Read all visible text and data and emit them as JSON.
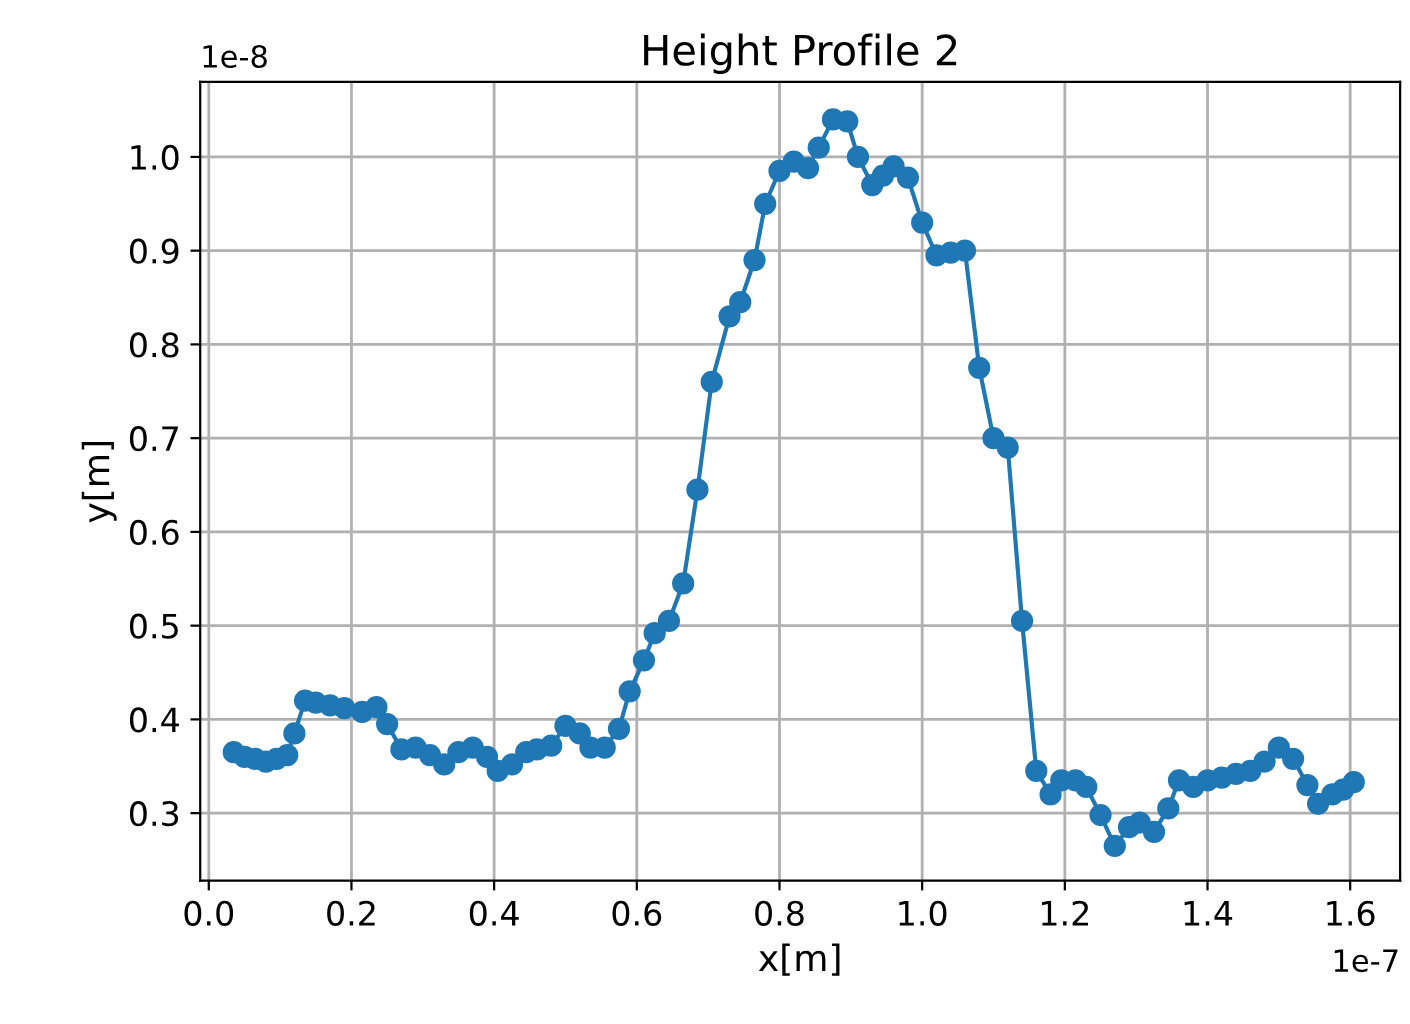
{
  "chart_data": {
    "type": "line",
    "title": "Height Profile 2",
    "xlabel": "x[m]",
    "ylabel": "y[m]",
    "annotations": [
      "1e-8",
      "1e-7"
    ],
    "series": [
      {
        "color": "#1f77b4",
        "x": [
          0.035,
          0.05,
          0.065,
          0.08,
          0.095,
          0.11,
          0.12,
          0.135,
          0.15,
          0.17,
          0.19,
          0.215,
          0.235,
          0.25,
          0.27,
          0.29,
          0.31,
          0.33,
          0.35,
          0.37,
          0.39,
          0.405,
          0.425,
          0.445,
          0.46,
          0.48,
          0.5,
          0.52,
          0.535,
          0.555,
          0.575,
          0.59,
          0.61,
          0.625,
          0.645,
          0.665,
          0.685,
          0.705,
          0.73,
          0.745,
          0.765,
          0.78,
          0.8,
          0.82,
          0.84,
          0.855,
          0.875,
          0.895,
          0.91,
          0.93,
          0.945,
          0.96,
          0.98,
          1.0,
          1.02,
          1.04,
          1.06,
          1.08,
          1.1,
          1.12,
          1.14,
          1.16,
          1.18,
          1.195,
          1.215,
          1.23,
          1.25,
          1.27,
          1.29,
          1.305,
          1.325,
          1.345,
          1.36,
          1.38,
          1.4,
          1.42,
          1.44,
          1.46,
          1.48,
          1.5,
          1.52,
          1.54,
          1.555,
          1.575,
          1.59,
          1.605
        ],
        "values": [
          0.365,
          0.36,
          0.358,
          0.355,
          0.358,
          0.362,
          0.385,
          0.42,
          0.418,
          0.415,
          0.412,
          0.408,
          0.413,
          0.395,
          0.368,
          0.37,
          0.362,
          0.352,
          0.365,
          0.37,
          0.36,
          0.345,
          0.352,
          0.365,
          0.368,
          0.372,
          0.393,
          0.385,
          0.37,
          0.37,
          0.39,
          0.43,
          0.463,
          0.492,
          0.505,
          0.545,
          0.645,
          0.76,
          0.83,
          0.845,
          0.89,
          0.95,
          0.985,
          0.995,
          0.988,
          1.01,
          1.04,
          1.038,
          1.0,
          0.97,
          0.98,
          0.99,
          0.978,
          0.93,
          0.895,
          0.898,
          0.9,
          0.775,
          0.7,
          0.69,
          0.505,
          0.345,
          0.32,
          0.335,
          0.335,
          0.328,
          0.298,
          0.265,
          0.285,
          0.29,
          0.28,
          0.305,
          0.335,
          0.328,
          0.335,
          0.338,
          0.342,
          0.345,
          0.355,
          0.37,
          0.358,
          0.33,
          0.31,
          0.32,
          0.325,
          0.333
        ]
      }
    ],
    "xlim": [
      -0.012,
      1.67
    ],
    "ylim": [
      0.228,
      1.08
    ],
    "xticks": [
      {
        "value": 0,
        "label": "0.0"
      },
      0.2,
      0.4,
      0.6,
      0.8,
      {
        "value": 1,
        "label": "1.0"
      },
      1.2,
      1.4,
      1.6
    ],
    "yticks": [
      0.3,
      0.4,
      0.5,
      0.6,
      0.7,
      0.8,
      0.9,
      {
        "value": 1,
        "label": "1.0"
      }
    ],
    "grid": true,
    "marker": "circle",
    "line_style": "solid"
  }
}
